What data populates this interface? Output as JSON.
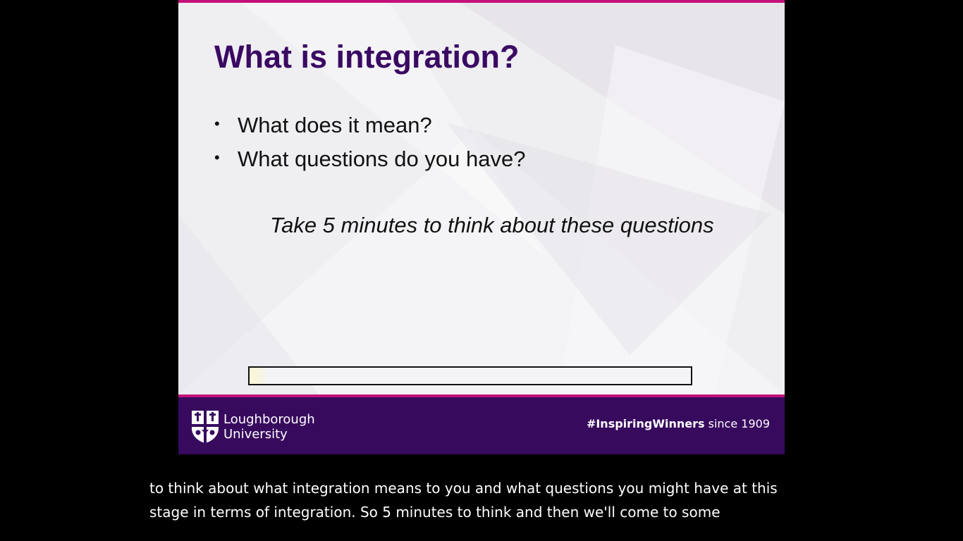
{
  "slide": {
    "title": "What is integration?",
    "bullets": [
      "What does it mean?",
      "What questions do you have?"
    ],
    "bullet_glyph": "•",
    "prompt": "Take 5 minutes to think about these questions",
    "timer_progress": 0.04
  },
  "footer": {
    "logo_line1": "Loughborough",
    "logo_line2": "University",
    "tagline_hashtag": "#InspiringWinners",
    "tagline_rest": " since 1909"
  },
  "captions": {
    "line1": "to think about what integration means to you and what questions you might have at this",
    "line2": "stage in terms of integration. So 5 minutes to think and then we'll come to some"
  },
  "colors": {
    "accent": "#c4117a",
    "brand_purple": "#370a5e",
    "title_purple": "#3a0a63"
  },
  "icons": {
    "logo": "university-shield-icon"
  }
}
